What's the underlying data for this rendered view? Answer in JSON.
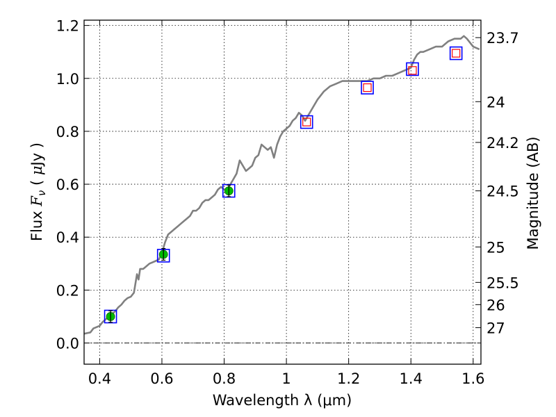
{
  "chart_data": {
    "type": "line",
    "title": "",
    "xlabel": "Wavelength  λ (μm)",
    "ylabel": "Flux  F_ν  ( μJy )",
    "ylabel_parts": {
      "prefix": "Flux  ",
      "symbol": "F",
      "subscript": "ν",
      "open": "  ( ",
      "mu": "μ",
      "unit": "Jy )"
    },
    "ylabel_right": "Magnitude (AB)",
    "xlim": [
      0.35,
      1.625
    ],
    "ylim": [
      -0.08,
      1.22
    ],
    "grid": true,
    "x_ticks": [
      {
        "value": 0.4,
        "label": "0.4"
      },
      {
        "value": 0.6,
        "label": "0.6"
      },
      {
        "value": 0.8,
        "label": "0.8"
      },
      {
        "value": 1.0,
        "label": "1"
      },
      {
        "value": 1.2,
        "label": "1.2"
      },
      {
        "value": 1.4,
        "label": "1.4"
      },
      {
        "value": 1.6,
        "label": "1.6"
      }
    ],
    "y_ticks": [
      {
        "value": 0.0,
        "label": "0.0"
      },
      {
        "value": 0.2,
        "label": "0.2"
      },
      {
        "value": 0.4,
        "label": "0.4"
      },
      {
        "value": 0.6,
        "label": "0.6"
      },
      {
        "value": 0.8,
        "label": "0.8"
      },
      {
        "value": 1.0,
        "label": "1.0"
      },
      {
        "value": 1.2,
        "label": "1.2"
      }
    ],
    "mag_ticks": [
      {
        "flux": 1.154,
        "label": "23.7"
      },
      {
        "flux": 0.912,
        "label": "24"
      },
      {
        "flux": 0.758,
        "label": "24.2"
      },
      {
        "flux": 0.575,
        "label": "24.5"
      },
      {
        "flux": 0.363,
        "label": "25"
      },
      {
        "flux": 0.229,
        "label": "25.5"
      },
      {
        "flux": 0.145,
        "label": "26"
      },
      {
        "flux": 0.058,
        "label": "27"
      }
    ],
    "colors": {
      "model": "#808080",
      "model_box": "#0000ff",
      "detection": "#00bb00",
      "upper_limit": "#ff0000",
      "zero_line": "#000000"
    },
    "series": [
      {
        "name": "model SED",
        "style": "line",
        "x": [
          0.35,
          0.37,
          0.38,
          0.39,
          0.4,
          0.41,
          0.42,
          0.43,
          0.44,
          0.45,
          0.46,
          0.47,
          0.48,
          0.49,
          0.5,
          0.51,
          0.52,
          0.525,
          0.53,
          0.54,
          0.55,
          0.56,
          0.57,
          0.58,
          0.59,
          0.6,
          0.61,
          0.62,
          0.63,
          0.64,
          0.65,
          0.66,
          0.67,
          0.68,
          0.69,
          0.7,
          0.71,
          0.72,
          0.73,
          0.74,
          0.75,
          0.76,
          0.77,
          0.78,
          0.79,
          0.8,
          0.81,
          0.82,
          0.83,
          0.84,
          0.85,
          0.86,
          0.87,
          0.88,
          0.89,
          0.9,
          0.91,
          0.92,
          0.93,
          0.94,
          0.95,
          0.96,
          0.97,
          0.98,
          0.99,
          1.0,
          1.01,
          1.02,
          1.03,
          1.04,
          1.05,
          1.06,
          1.08,
          1.1,
          1.12,
          1.14,
          1.16,
          1.18,
          1.2,
          1.22,
          1.24,
          1.26,
          1.28,
          1.3,
          1.32,
          1.34,
          1.36,
          1.38,
          1.4,
          1.41,
          1.42,
          1.43,
          1.44,
          1.46,
          1.48,
          1.5,
          1.51,
          1.52,
          1.54,
          1.56,
          1.57,
          1.58,
          1.6,
          1.62
        ],
        "y": [
          0.035,
          0.04,
          0.055,
          0.06,
          0.065,
          0.08,
          0.09,
          0.1,
          0.11,
          0.12,
          0.135,
          0.145,
          0.16,
          0.17,
          0.175,
          0.19,
          0.26,
          0.24,
          0.28,
          0.28,
          0.29,
          0.3,
          0.305,
          0.31,
          0.315,
          0.34,
          0.38,
          0.41,
          0.42,
          0.43,
          0.44,
          0.45,
          0.46,
          0.47,
          0.48,
          0.5,
          0.5,
          0.51,
          0.53,
          0.54,
          0.54,
          0.55,
          0.56,
          0.58,
          0.59,
          0.58,
          0.58,
          0.6,
          0.62,
          0.64,
          0.69,
          0.67,
          0.65,
          0.66,
          0.67,
          0.7,
          0.71,
          0.75,
          0.74,
          0.73,
          0.74,
          0.7,
          0.75,
          0.78,
          0.8,
          0.81,
          0.82,
          0.84,
          0.85,
          0.87,
          0.86,
          0.84,
          0.88,
          0.92,
          0.95,
          0.97,
          0.98,
          0.99,
          0.99,
          0.99,
          0.99,
          0.99,
          1.0,
          1.0,
          1.01,
          1.01,
          1.02,
          1.03,
          1.04,
          1.07,
          1.09,
          1.1,
          1.1,
          1.11,
          1.12,
          1.12,
          1.13,
          1.14,
          1.15,
          1.15,
          1.16,
          1.15,
          1.12,
          1.11
        ]
      },
      {
        "name": "model photometry",
        "style": "open-square-blue",
        "x": [
          0.435,
          0.605,
          0.815,
          1.065,
          1.26,
          1.405,
          1.545
        ],
        "y": [
          0.1,
          0.33,
          0.575,
          0.835,
          0.965,
          1.035,
          1.095
        ]
      },
      {
        "name": "detections",
        "style": "filled-circle-green",
        "x": [
          0.435,
          0.605,
          0.815
        ],
        "y": [
          0.1,
          0.335,
          0.575
        ],
        "yerr": [
          0.022,
          0.022,
          0.022
        ]
      },
      {
        "name": "upper limits",
        "style": "open-square-red",
        "x": [
          1.065,
          1.26,
          1.405,
          1.545
        ],
        "y": [
          0.835,
          0.965,
          1.03,
          1.095
        ]
      }
    ]
  }
}
